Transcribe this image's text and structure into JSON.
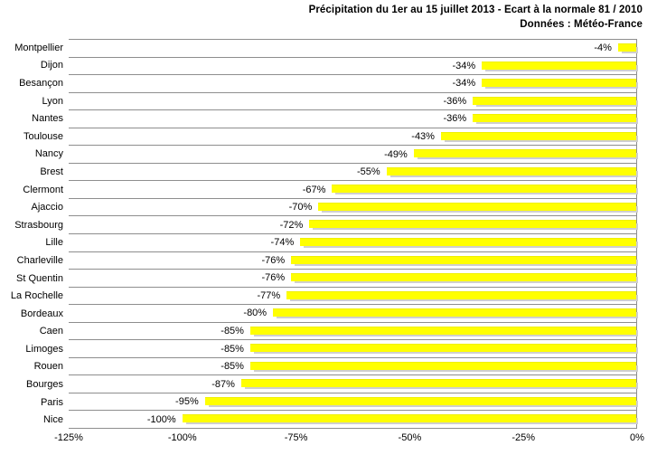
{
  "header": {
    "title": "Précipitation du 1er au 15 juillet 2013 - Ecart à la normale 81 / 2010",
    "subtitle": "Données : Météo-France"
  },
  "chart_data": {
    "type": "bar",
    "orientation": "horizontal",
    "title": "Précipitation du 1er au 15 juillet 2013 - Ecart à la normale 81 / 2010",
    "subtitle": "Données : Météo-France",
    "categories": [
      "Montpellier",
      "Dijon",
      "Besançon",
      "Lyon",
      "Nantes",
      "Toulouse",
      "Nancy",
      "Brest",
      "Clermont",
      "Ajaccio",
      "Strasbourg",
      "Lille",
      "Charleville",
      "St Quentin",
      "La Rochelle",
      "Bordeaux",
      "Caen",
      "Limoges",
      "Rouen",
      "Bourges",
      "Paris",
      "Nice"
    ],
    "values": [
      -4,
      -34,
      -34,
      -36,
      -36,
      -43,
      -49,
      -55,
      -67,
      -70,
      -72,
      -74,
      -76,
      -76,
      -77,
      -80,
      -85,
      -85,
      -85,
      -87,
      -95,
      -100
    ],
    "value_labels": [
      "-4%",
      "-34%",
      "-34%",
      "-36%",
      "-36%",
      "-43%",
      "-49%",
      "-55%",
      "-67%",
      "-70%",
      "-72%",
      "-74%",
      "-76%",
      "-76%",
      "-77%",
      "-80%",
      "-85%",
      "-85%",
      "-85%",
      "-87%",
      "-95%",
      "-100%"
    ],
    "xlabel": "",
    "ylabel": "",
    "xlim": [
      -125,
      0
    ],
    "x_ticks": [
      "-125%",
      "-100%",
      "-75%",
      "-50%",
      "-25%",
      "0%"
    ],
    "grid": "horizontal-row-separators",
    "legend": "none",
    "bar_color": "#FFFF00",
    "bar_shadow_color": "#cfcfcf",
    "gridline_color": "#8e8e8e",
    "text_color": "#000000",
    "background_color": "#ffffff"
  }
}
